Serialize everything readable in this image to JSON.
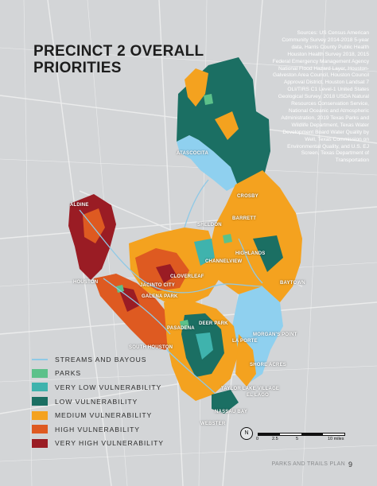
{
  "title_line1": "PRECINCT 2 OVERALL",
  "title_line2": "PRIORITIES",
  "sources": "Sources: US Census American Community Survey 2014-2018 5-year data, Harris County Public Health Houston Health Survey 2018, 2015 Federal Emergency Management Agency National Flood Hazard Layer, Houston-Galveston Area Council, Houston Council Approval District, Houston Landsat 7 OLI/TIRS C1 Level-1 United States Geological Survey, 2018 USDA Natural Resources Conservation Service, National Oceanic and Atmospheric Administration, 2019 Texas Parks and Wildlife Department, Texas Water Development Board Water Quality by Well, Texas Commission on Environmental Quality, and U.S. EJ Screen, Texas Department of Transportation",
  "places": {
    "atascocita": "ATASCOCITA",
    "crosby": "CROSBY",
    "barrett": "BARRETT",
    "aldine": "ALDINE",
    "sheldon": "SHELDON",
    "highlands": "HIGHLANDS",
    "channelview": "CHANNELVIEW",
    "houston": "HOUSTON",
    "cloverleaf": "CLOVERLEAF",
    "jacinto_city": "JACINTO CITY",
    "galena_park": "GALENA PARK",
    "baytown": "BAYTOWN",
    "deer_park": "DEER PARK",
    "pasadena": "PASADENA",
    "la_porte": "LA PORTE",
    "morgans_point": "MORGAN'S POINT",
    "south_houston": "SOUTH HOUSTON",
    "shore_acres": "SHORE ACRES",
    "taylor_lake_village": "TAYLOR LAKE VILLAGE",
    "el_lago": "EL LAGO",
    "nassau_bay": "NASSAU BAY",
    "webster": "WEBSTER"
  },
  "legend": {
    "items": [
      {
        "label": "STREAMS AND BAYOUS",
        "type": "line",
        "color": "#8fc9e6"
      },
      {
        "label": "PARKS",
        "type": "fill",
        "color": "#5cc18a"
      },
      {
        "label": "VERY LOW VULNERABILITY",
        "type": "fill",
        "color": "#3fb3ad"
      },
      {
        "label": "LOW VULNERABILITY",
        "type": "fill",
        "color": "#1b6f63"
      },
      {
        "label": "MEDIUM VULNERABILITY",
        "type": "fill",
        "color": "#f4a21f"
      },
      {
        "label": "HIGH VULNERABILITY",
        "type": "fill",
        "color": "#de5a21"
      },
      {
        "label": "VERY HIGH VULNERABILITY",
        "type": "fill",
        "color": "#9a1c24"
      }
    ]
  },
  "scale": {
    "labels": [
      "0",
      "2.5",
      "5",
      "10 miles"
    ],
    "north": "N"
  },
  "footer": "PARKS AND TRAILS PLAN",
  "page_number": "9"
}
